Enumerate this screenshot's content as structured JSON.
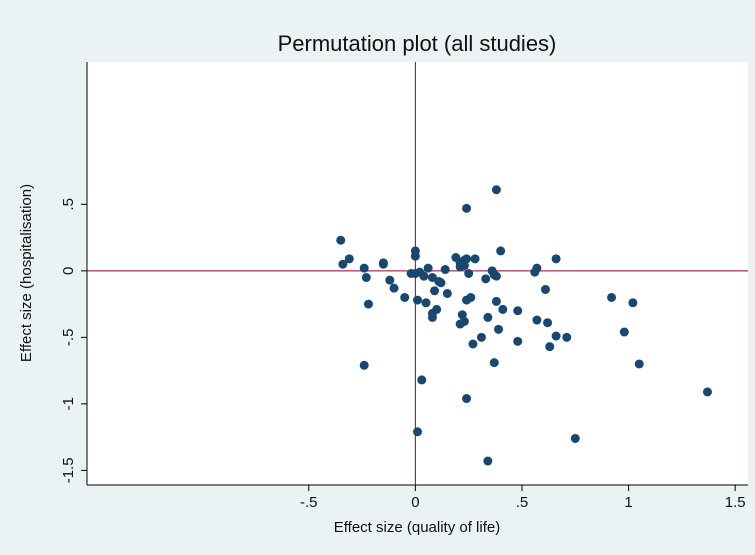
{
  "chart_data": {
    "type": "scatter",
    "title": "Permutation plot (all studies)",
    "x_label": "Effect size (quality of life)",
    "y_label": "Effect size (hospitalisation)",
    "x": [
      -0.35,
      -0.34,
      -0.31,
      -0.24,
      -0.23,
      -0.22,
      -0.24,
      -0.15,
      -0.15,
      -0.12,
      -0.1,
      -0.05,
      -0.02,
      0.0,
      0.0,
      0.0,
      0.01,
      0.02,
      0.03,
      0.01,
      0.04,
      0.05,
      0.06,
      0.08,
      0.08,
      0.08,
      0.09,
      0.1,
      0.11,
      0.12,
      0.15,
      0.14,
      0.19,
      0.21,
      0.21,
      0.21,
      0.22,
      0.23,
      0.23,
      0.23,
      0.24,
      0.24,
      0.24,
      0.25,
      0.26,
      0.27,
      0.28,
      0.31,
      0.33,
      0.34,
      0.34,
      0.36,
      0.37,
      0.37,
      0.38,
      0.38,
      0.38,
      0.39,
      0.4,
      0.41,
      0.48,
      0.48,
      0.56,
      0.57,
      0.57,
      0.61,
      0.62,
      0.63,
      0.66,
      0.66,
      0.71,
      0.92,
      0.98,
      1.02,
      1.05,
      1.37,
      0.75,
      0.24
    ],
    "y": [
      0.23,
      0.05,
      0.09,
      0.02,
      -0.05,
      -0.25,
      -0.71,
      0.06,
      0.05,
      -0.07,
      -0.13,
      -0.2,
      -0.02,
      0.15,
      0.11,
      -0.02,
      -0.22,
      -0.01,
      -0.82,
      -1.21,
      -0.04,
      -0.24,
      0.02,
      -0.35,
      -0.32,
      -0.05,
      -0.15,
      -0.29,
      -0.08,
      -0.09,
      -0.17,
      0.01,
      0.1,
      0.03,
      0.06,
      -0.4,
      -0.33,
      0.04,
      0.08,
      -0.38,
      0.09,
      0.47,
      -0.22,
      -0.02,
      -0.2,
      -0.55,
      0.09,
      -0.5,
      -0.06,
      -0.35,
      -1.43,
      0.0,
      -0.03,
      -0.69,
      0.61,
      -0.23,
      -0.04,
      -0.44,
      0.15,
      -0.29,
      -0.3,
      -0.53,
      -0.01,
      0.02,
      -0.37,
      -0.14,
      -0.39,
      -0.57,
      0.09,
      -0.49,
      -0.5,
      -0.2,
      -0.46,
      -0.24,
      -0.7,
      -0.91,
      -1.26,
      -0.96
    ],
    "color": "#1a476f",
    "xlim": [
      -1.54,
      1.56
    ],
    "ylim": [
      -1.61,
      1.57
    ],
    "xticks": [
      {
        "value": -0.5,
        "label": "-.5"
      },
      0,
      {
        "value": 0.5,
        "label": ".5"
      },
      1,
      1.5
    ],
    "yticks": [
      {
        "value": -1.5,
        "label": "-1.5"
      },
      -1,
      {
        "value": -0.5,
        "label": "-.5"
      },
      0,
      {
        "value": 0.5,
        "label": ".5"
      }
    ],
    "xline": 0,
    "yline": 0,
    "refline_color": "#90002e"
  }
}
